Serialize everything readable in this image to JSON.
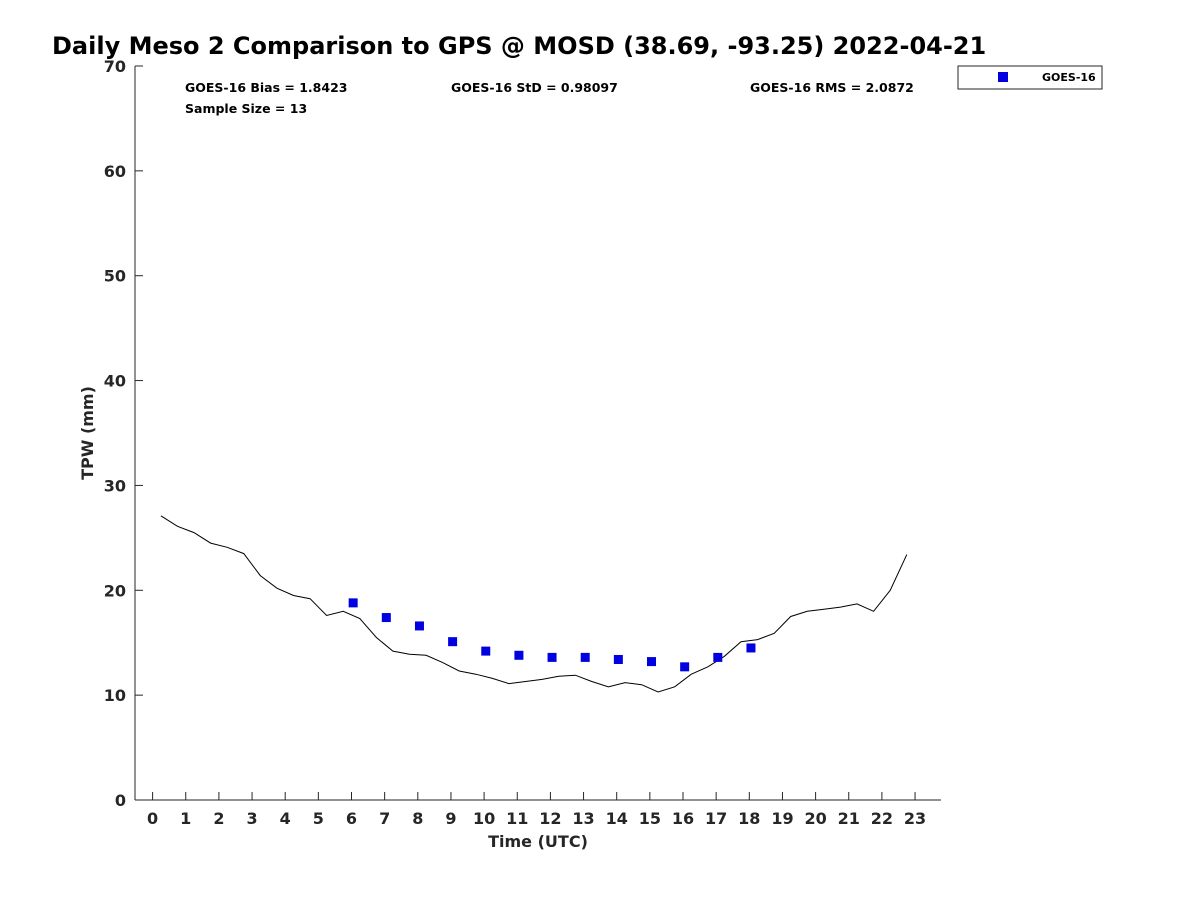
{
  "chart_data": {
    "type": "line",
    "title": "Daily Meso 2 Comparison to GPS @ MOSD (38.69, -93.25) 2022-04-21",
    "xlabel": "Time (UTC)",
    "ylabel": "TPW (mm)",
    "xlim": [
      -0.5,
      23.8
    ],
    "ylim": [
      0,
      70
    ],
    "x_ticks": [
      0,
      1,
      2,
      3,
      4,
      5,
      6,
      7,
      8,
      9,
      10,
      11,
      12,
      13,
      14,
      15,
      16,
      17,
      18,
      19,
      20,
      21,
      22,
      23
    ],
    "y_ticks": [
      0,
      10,
      20,
      30,
      40,
      50,
      60,
      70
    ],
    "grid": false,
    "legend_position": "top-right (outside plot)",
    "stats": {
      "bias": "GOES-16 Bias = 1.8423",
      "std": "GOES-16 StD = 0.98097",
      "rms": "GOES-16 RMS = 2.0872",
      "sample": "Sample Size = 13"
    },
    "series": [
      {
        "name": "GPS",
        "kind": "line",
        "color": "#000000",
        "x": [
          0.25,
          0.75,
          1.25,
          1.75,
          2.25,
          2.75,
          3.25,
          3.75,
          4.25,
          4.75,
          5.25,
          5.75,
          6.25,
          6.75,
          7.25,
          7.75,
          8.25,
          8.75,
          9.25,
          9.75,
          10.25,
          10.75,
          11.25,
          11.75,
          12.25,
          12.75,
          13.25,
          13.75,
          14.25,
          14.75,
          15.25,
          15.75,
          16.25,
          16.75,
          17.25,
          17.75,
          18.25,
          18.75,
          19.25,
          19.75,
          20.25,
          20.75,
          21.25,
          21.75,
          22.25,
          22.75
        ],
        "y": [
          27.1,
          26.1,
          25.5,
          24.5,
          24.1,
          23.5,
          21.4,
          20.2,
          19.5,
          19.2,
          17.6,
          18.0,
          17.3,
          15.5,
          14.2,
          13.9,
          13.8,
          13.1,
          12.3,
          12.0,
          11.6,
          11.1,
          11.3,
          11.5,
          11.8,
          11.9,
          11.3,
          10.8,
          11.2,
          11.0,
          10.3,
          10.8,
          12.0,
          12.7,
          13.7,
          15.1,
          15.3,
          15.9,
          17.5,
          18.0,
          18.2,
          18.4,
          18.7,
          18.0,
          20.0,
          23.4
        ]
      },
      {
        "name": "GOES-16",
        "kind": "scatter",
        "marker": "square",
        "color": "#0000e0",
        "x": [
          6.05,
          7.05,
          8.05,
          9.05,
          10.05,
          11.05,
          12.05,
          13.05,
          14.05,
          15.05,
          16.05,
          17.05,
          18.05
        ],
        "y": [
          18.8,
          17.4,
          16.6,
          15.1,
          14.2,
          13.8,
          13.6,
          13.6,
          13.4,
          13.2,
          12.7,
          13.6,
          14.5
        ]
      }
    ],
    "legend": [
      {
        "label": "GOES-16",
        "color": "#0000e0",
        "marker": "square"
      }
    ]
  }
}
